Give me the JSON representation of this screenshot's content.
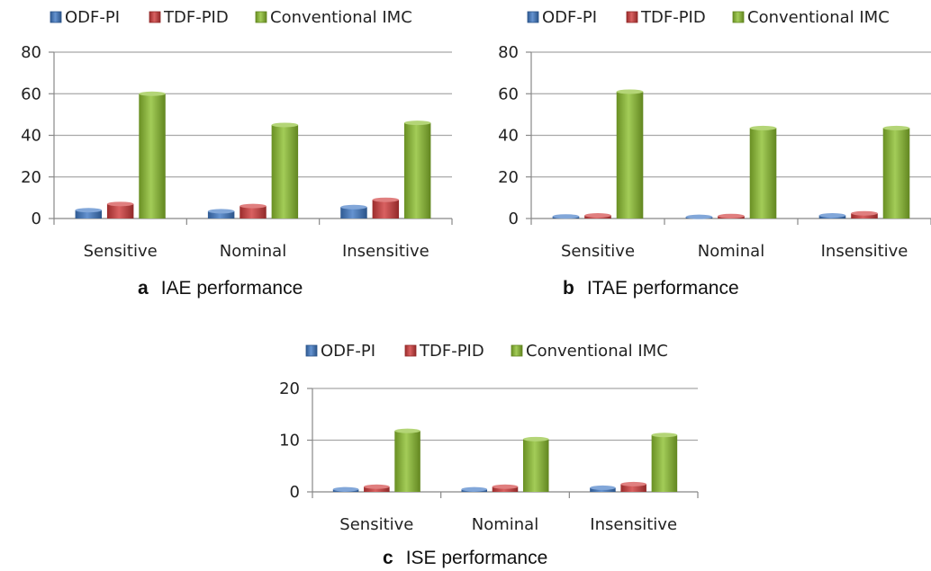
{
  "colors": {
    "ODF-PI": "#3e78c4",
    "TDF-PID": "#cf3a3a",
    "Conventional IMC": "#8cbf2e"
  },
  "captions": [
    {
      "letter": "a",
      "text": "IAE performance"
    },
    {
      "letter": "b",
      "text": "ITAE performance"
    },
    {
      "letter": "c",
      "text": "ISE performance"
    }
  ],
  "chart_data": [
    {
      "type": "bar",
      "title": "",
      "xlabel": "",
      "ylabel": "",
      "categories": [
        "Sensitive",
        "Nominal",
        "Insensitive"
      ],
      "series": [
        {
          "name": "ODF-PI",
          "values": [
            4,
            3.5,
            5.5
          ]
        },
        {
          "name": "TDF-PID",
          "values": [
            7,
            6,
            9
          ]
        },
        {
          "name": "Conventional IMC",
          "values": [
            60,
            45,
            46
          ]
        }
      ],
      "ylim": [
        0,
        80
      ],
      "yticks": [
        "0",
        "20",
        "40",
        "60",
        "80"
      ],
      "grid": true,
      "legend": "top"
    },
    {
      "type": "bar",
      "title": "",
      "xlabel": "",
      "ylabel": "",
      "categories": [
        "Sensitive",
        "Nominal",
        "Insensitive"
      ],
      "series": [
        {
          "name": "ODF-PI",
          "values": [
            1,
            0.8,
            1.5
          ]
        },
        {
          "name": "TDF-PID",
          "values": [
            1.5,
            1.2,
            2.5
          ]
        },
        {
          "name": "Conventional IMC",
          "values": [
            61,
            43.5,
            43.5
          ]
        }
      ],
      "ylim": [
        0,
        80
      ],
      "yticks": [
        "0",
        "20",
        "40",
        "60",
        "80"
      ],
      "grid": true,
      "legend": "top"
    },
    {
      "type": "bar",
      "title": "",
      "xlabel": "",
      "ylabel": "",
      "categories": [
        "Sensitive",
        "Nominal",
        "Insensitive"
      ],
      "series": [
        {
          "name": "ODF-PI",
          "values": [
            0.5,
            0.5,
            0.8
          ]
        },
        {
          "name": "TDF-PID",
          "values": [
            1,
            1,
            1.5
          ]
        },
        {
          "name": "Conventional IMC",
          "values": [
            11.8,
            10.2,
            11
          ]
        }
      ],
      "ylim": [
        0,
        20
      ],
      "yticks": [
        "0",
        "10",
        "20"
      ],
      "grid": true,
      "legend": "top"
    }
  ]
}
